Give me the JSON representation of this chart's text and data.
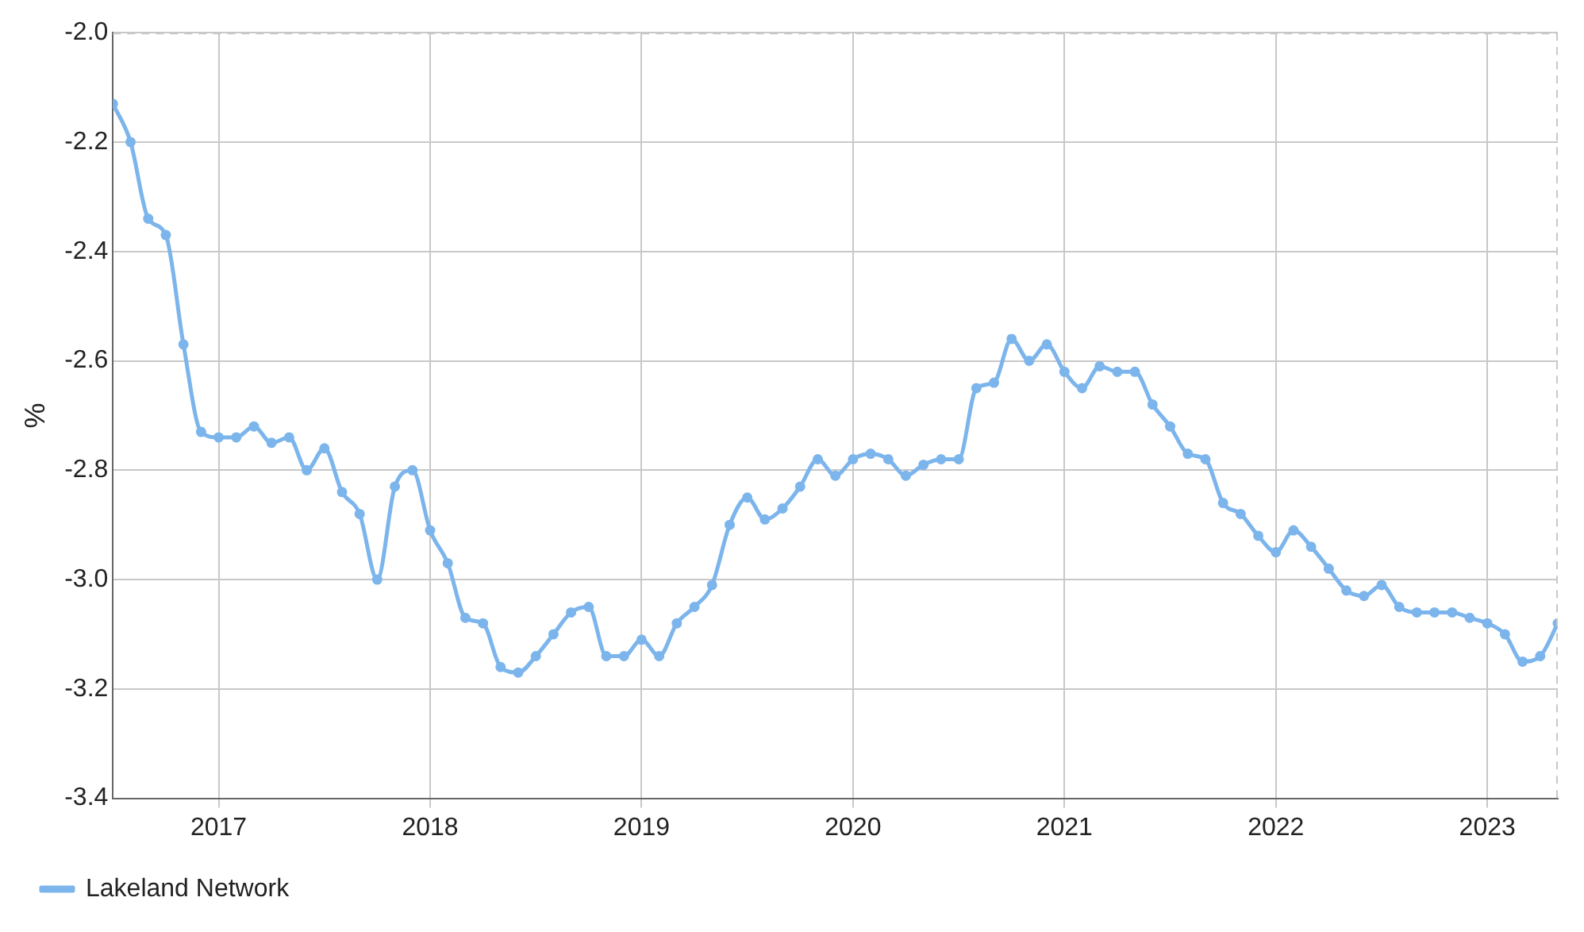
{
  "chart_data": {
    "type": "line",
    "ylabel": "%",
    "x": [
      "2016-07",
      "2016-08",
      "2016-09",
      "2016-10",
      "2016-11",
      "2016-12",
      "2017-01",
      "2017-02",
      "2017-03",
      "2017-04",
      "2017-05",
      "2017-06",
      "2017-07",
      "2017-08",
      "2017-09",
      "2017-10",
      "2017-11",
      "2017-12",
      "2018-01",
      "2018-02",
      "2018-03",
      "2018-04",
      "2018-05",
      "2018-06",
      "2018-07",
      "2018-08",
      "2018-09",
      "2018-10",
      "2018-11",
      "2018-12",
      "2019-01",
      "2019-02",
      "2019-03",
      "2019-04",
      "2019-05",
      "2019-06",
      "2019-07",
      "2019-08",
      "2019-09",
      "2019-10",
      "2019-11",
      "2019-12",
      "2020-01",
      "2020-02",
      "2020-03",
      "2020-04",
      "2020-05",
      "2020-06",
      "2020-07",
      "2020-08",
      "2020-09",
      "2020-10",
      "2020-11",
      "2020-12",
      "2021-01",
      "2021-02",
      "2021-03",
      "2021-04",
      "2021-05",
      "2021-06",
      "2021-07",
      "2021-08",
      "2021-09",
      "2021-10",
      "2021-11",
      "2021-12",
      "2022-01",
      "2022-02",
      "2022-03",
      "2022-04",
      "2022-05",
      "2022-06",
      "2022-07",
      "2022-08",
      "2022-09",
      "2022-10",
      "2022-11",
      "2022-12",
      "2023-01",
      "2023-02",
      "2023-03",
      "2023-04",
      "2023-05"
    ],
    "series": [
      {
        "name": "Lakeland Network",
        "color": "#7cb5ec",
        "values": [
          -2.13,
          -2.2,
          -2.34,
          -2.37,
          -2.57,
          -2.73,
          -2.74,
          -2.74,
          -2.72,
          -2.75,
          -2.74,
          -2.8,
          -2.76,
          -2.84,
          -2.88,
          -3.0,
          -2.83,
          -2.8,
          -2.91,
          -2.97,
          -3.07,
          -3.08,
          -3.16,
          -3.17,
          -3.14,
          -3.1,
          -3.06,
          -3.05,
          -3.14,
          -3.14,
          -3.11,
          -3.14,
          -3.08,
          -3.05,
          -3.01,
          -2.9,
          -2.85,
          -2.89,
          -2.87,
          -2.83,
          -2.78,
          -2.81,
          -2.78,
          -2.77,
          -2.78,
          -2.81,
          -2.79,
          -2.78,
          -2.78,
          -2.65,
          -2.64,
          -2.56,
          -2.6,
          -2.57,
          -2.62,
          -2.65,
          -2.61,
          -2.62,
          -2.62,
          -2.68,
          -2.72,
          -2.77,
          -2.78,
          -2.86,
          -2.88,
          -2.92,
          -2.95,
          -2.91,
          -2.94,
          -2.98,
          -3.02,
          -3.03,
          -3.01,
          -3.05,
          -3.06,
          -3.06,
          -3.06,
          -3.07,
          -3.08,
          -3.1,
          -3.15,
          -3.14,
          -3.08
        ]
      }
    ],
    "xlim": [
      "2016-07",
      "2023-05"
    ],
    "xticks": [
      "2017",
      "2018",
      "2019",
      "2020",
      "2021",
      "2022",
      "2023"
    ],
    "ylim": [
      -3.4,
      -2.0
    ],
    "yticks": [
      {
        "value": -3.4,
        "label": "-3.4"
      },
      {
        "value": -3.2,
        "label": "-3.2"
      },
      {
        "value": -3.0,
        "label": "-3.0"
      },
      {
        "value": -2.8,
        "label": "-2.8"
      },
      {
        "value": -2.6,
        "label": "-2.6"
      },
      {
        "value": -2.4,
        "label": "-2.4"
      },
      {
        "value": -2.2,
        "label": "-2.2"
      },
      {
        "value": -2.0,
        "label": "-2.0"
      }
    ],
    "grid": true,
    "legend": "bottom left",
    "marker": "circle",
    "line_style": "solid"
  }
}
